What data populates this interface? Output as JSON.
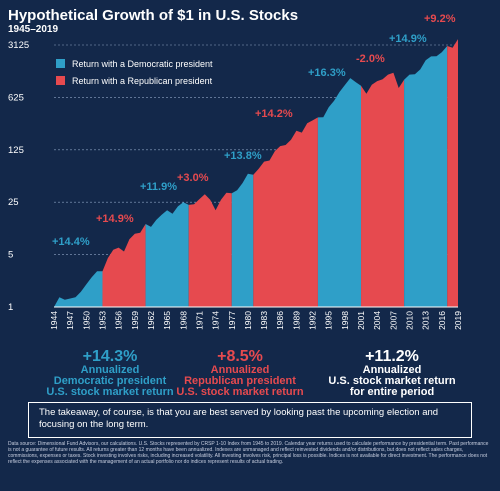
{
  "header": {
    "title": "Hypothetical Growth of $1 in U.S. Stocks",
    "subtitle": "1945–2019"
  },
  "legend": [
    {
      "label": "Return with a Democratic president",
      "color": "#2f9fc8"
    },
    {
      "label": "Return with a Republican president",
      "color": "#e64a4f"
    }
  ],
  "summary": [
    {
      "pct": "+14.3%",
      "line1": "Annualized",
      "line2": "Democratic president",
      "line3": "U.S. stock market return",
      "color": "#2f9fc8"
    },
    {
      "pct": "+8.5%",
      "line1": "Annualized",
      "line2": "Republican president",
      "line3": "U.S. stock market return",
      "color": "#e64a4f"
    },
    {
      "pct": "+11.2%",
      "line1": "Annualized",
      "line2": "U.S. stock market return",
      "line3": "for entire period",
      "color": "#ffffff"
    }
  ],
  "takeaway": "The takeaway, of course, is that you are best served by looking past the upcoming election and focusing on the long term.",
  "source": "Data source: Dimensional Fund Advisors, our calculations. U.S. Stocks represented by CRSP 1-10 Index from 1945 to 2019. Calendar year returns used to calculate performance by presidential term. Past performance is not a guarantee of future results. All returns greater than 12 months have been annualized. Indexes are unmanaged and reflect reinvested dividends and/or distributions, but does not reflect sales charges, commissions, expenses or taxes. Stock investing involves risks, including increased volatility. All investing involves risk, principal loss is possible. Indices is not available for direct investment. The performance does not reflect the expenses associated with the management of an actual portfolio nor do indices represent results of actual trading.",
  "chart_data": {
    "type": "area",
    "yscale": "log",
    "ylim": [
      1,
      3125
    ],
    "yticks": [
      1,
      5,
      25,
      125,
      625,
      3125
    ],
    "ytick_labels": [
      "1",
      "5",
      "25",
      "125",
      "625",
      "3125"
    ],
    "xlim": [
      1944,
      2019
    ],
    "xticks": [
      1944,
      1947,
      1950,
      1953,
      1956,
      1959,
      1962,
      1965,
      1968,
      1971,
      1974,
      1977,
      1980,
      1983,
      1986,
      1989,
      1992,
      1995,
      1998,
      2001,
      2004,
      2007,
      2010,
      2013,
      2016,
      2019
    ],
    "colors": {
      "D": "#2f9fc8",
      "R": "#e64a4f"
    },
    "points": [
      [
        1944,
        1.0
      ],
      [
        1945,
        1.35
      ],
      [
        1946,
        1.25
      ],
      [
        1947,
        1.3
      ],
      [
        1948,
        1.35
      ],
      [
        1949,
        1.6
      ],
      [
        1950,
        2.0
      ],
      [
        1951,
        2.5
      ],
      [
        1952,
        3.0
      ],
      [
        1953,
        3.0
      ],
      [
        1954,
        4.5
      ],
      [
        1955,
        5.8
      ],
      [
        1956,
        6.2
      ],
      [
        1957,
        5.5
      ],
      [
        1958,
        8.0
      ],
      [
        1959,
        9.5
      ],
      [
        1960,
        9.8
      ],
      [
        1961,
        12.8
      ],
      [
        1962,
        11.7
      ],
      [
        1963,
        14.5
      ],
      [
        1964,
        17.0
      ],
      [
        1965,
        19.5
      ],
      [
        1966,
        17.5
      ],
      [
        1967,
        22.0
      ],
      [
        1968,
        25.0
      ],
      [
        1969,
        23.0
      ],
      [
        1970,
        23.5
      ],
      [
        1971,
        27.5
      ],
      [
        1972,
        32.0
      ],
      [
        1973,
        27.0
      ],
      [
        1974,
        19.5
      ],
      [
        1975,
        27.0
      ],
      [
        1976,
        33.5
      ],
      [
        1977,
        33.0
      ],
      [
        1978,
        36.0
      ],
      [
        1979,
        45.0
      ],
      [
        1980,
        60.0
      ],
      [
        1981,
        58.0
      ],
      [
        1982,
        70.0
      ],
      [
        1983,
        87.0
      ],
      [
        1984,
        90.0
      ],
      [
        1985,
        120.0
      ],
      [
        1986,
        140.0
      ],
      [
        1987,
        145.0
      ],
      [
        1988,
        170.0
      ],
      [
        1989,
        225.0
      ],
      [
        1990,
        212.0
      ],
      [
        1991,
        282.0
      ],
      [
        1992,
        308.0
      ],
      [
        1993,
        338.0
      ],
      [
        1994,
        340.0
      ],
      [
        1995,
        463.0
      ],
      [
        1996,
        563.0
      ],
      [
        1997,
        738.0
      ],
      [
        1998,
        915.0
      ],
      [
        1999,
        1130.0
      ],
      [
        2000,
        1000.0
      ],
      [
        2001,
        895.0
      ],
      [
        2002,
        700.0
      ],
      [
        2003,
        920.0
      ],
      [
        2004,
        1030.0
      ],
      [
        2005,
        1090.0
      ],
      [
        2006,
        1260.0
      ],
      [
        2007,
        1330.0
      ],
      [
        2008,
        835.0
      ],
      [
        2009,
        1075.0
      ],
      [
        2010,
        1260.0
      ],
      [
        2011,
        1270.0
      ],
      [
        2012,
        1475.0
      ],
      [
        2013,
        1960.0
      ],
      [
        2014,
        2200.0
      ],
      [
        2015,
        2210.0
      ],
      [
        2016,
        2500.0
      ],
      [
        2017,
        3030.0
      ],
      [
        2018,
        2870.0
      ],
      [
        2019,
        3750.0
      ]
    ],
    "terms": [
      {
        "start": 1944,
        "end": 1953,
        "party": "D",
        "label": "+14.4%"
      },
      {
        "start": 1953,
        "end": 1961,
        "party": "R",
        "label": "+14.9%"
      },
      {
        "start": 1961,
        "end": 1969,
        "party": "D",
        "label": "+11.9%"
      },
      {
        "start": 1969,
        "end": 1977,
        "party": "R",
        "label": "+3.0%"
      },
      {
        "start": 1977,
        "end": 1981,
        "party": "D",
        "label": "+13.8%"
      },
      {
        "start": 1981,
        "end": 1993,
        "party": "R",
        "label": "+14.2%"
      },
      {
        "start": 1993,
        "end": 2001,
        "party": "D",
        "label": "+16.3%"
      },
      {
        "start": 2001,
        "end": 2009,
        "party": "R",
        "label": "-2.0%"
      },
      {
        "start": 2009,
        "end": 2017,
        "party": "D",
        "label": "+14.9%"
      },
      {
        "start": 2017,
        "end": 2019,
        "party": "R",
        "label": "+9.2%"
      }
    ]
  }
}
